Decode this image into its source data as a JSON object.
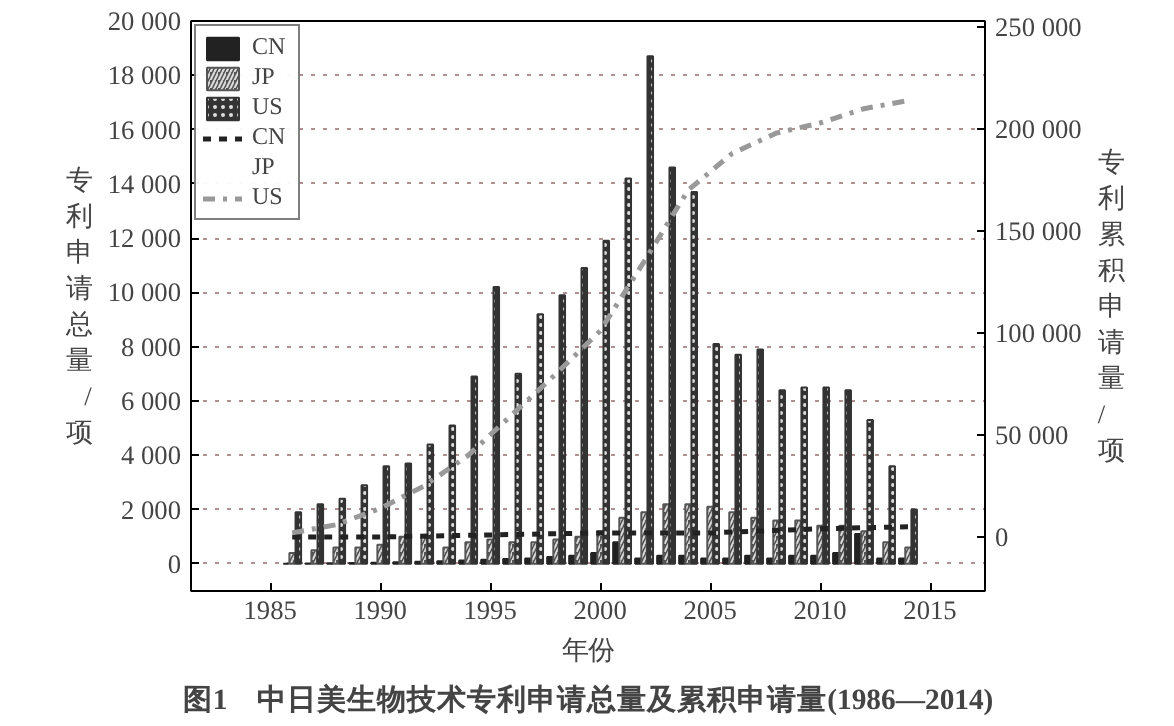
{
  "chart_data": {
    "type": "bar",
    "title": "图1　中日美生物技术专利申请总量及累积申请量(1986—2014)",
    "xlabel": "年份",
    "ylabel": "专利申请总量/项",
    "y2label": "专利累积申请量/项",
    "x": [
      1986,
      1987,
      1988,
      1989,
      1990,
      1991,
      1992,
      1993,
      1994,
      1995,
      1996,
      1997,
      1998,
      1999,
      2000,
      2001,
      2002,
      2003,
      2004,
      2005,
      2006,
      2007,
      2008,
      2009,
      2010,
      2011,
      2012,
      2013,
      2014
    ],
    "series": [
      {
        "name": "CN",
        "color": "#222222",
        "values": [
          0,
          10,
          20,
          30,
          40,
          60,
          80,
          100,
          120,
          150,
          180,
          200,
          250,
          300,
          400,
          800,
          200,
          300,
          300,
          200,
          200,
          300,
          200,
          300,
          300,
          400,
          1100,
          200,
          200
        ]
      },
      {
        "name": "JP",
        "color": "#555555",
        "values": [
          400,
          500,
          600,
          600,
          700,
          1000,
          1000,
          600,
          800,
          900,
          800,
          800,
          900,
          1000,
          1200,
          1700,
          1900,
          2200,
          2200,
          2100,
          1900,
          1700,
          1600,
          1600,
          1400,
          1400,
          1200,
          800,
          600
        ]
      },
      {
        "name": "US",
        "color": "#333333",
        "values": [
          1900,
          2200,
          2400,
          2900,
          3600,
          3700,
          4400,
          5100,
          6900,
          10200,
          7000,
          9200,
          9900,
          10900,
          11900,
          14200,
          18700,
          14600,
          13700,
          8100,
          7700,
          7900,
          6400,
          6500,
          6500,
          6400,
          5300,
          3600,
          2000
        ]
      },
      {
        "name": "CN",
        "type": "line",
        "axis": "y2",
        "color": "#222222",
        "line_style": "dotted",
        "x": [
          1986,
          1990,
          1995,
          2000,
          2005,
          2010,
          2014
        ],
        "values": [
          0,
          0,
          1000,
          2000,
          2000,
          4000,
          5000
        ]
      },
      {
        "name": "US",
        "type": "line",
        "axis": "y2",
        "color": "#999999",
        "line_style": "dashed",
        "x": [
          1986,
          1988,
          1990,
          1992,
          1994,
          1996,
          1998,
          2000,
          2002,
          2004,
          2006,
          2008,
          2010,
          2012,
          2014
        ],
        "values": [
          2000,
          6000,
          14000,
          25000,
          40000,
          60000,
          80000,
          101000,
          135000,
          170000,
          188000,
          198000,
          203000,
          210000,
          214000
        ]
      }
    ],
    "xlim": [
      1981.4,
      2017.5
    ],
    "xticks": [
      1985,
      1990,
      1995,
      2000,
      2005,
      2010,
      2015
    ],
    "ylim": [
      -1000,
      20000
    ],
    "yticks": [
      0,
      {
        "value": 2000,
        "label": "2 000"
      },
      {
        "value": 4000,
        "label": "4 000"
      },
      {
        "value": 6000,
        "label": "6 000"
      },
      {
        "value": 8000,
        "label": "8 000"
      },
      {
        "value": 10000,
        "label": "10 000"
      },
      {
        "value": 12000,
        "label": "12 000"
      },
      {
        "value": 14000,
        "label": "14 000"
      },
      {
        "value": 16000,
        "label": "16 000"
      },
      {
        "value": 18000,
        "label": "18 000"
      },
      {
        "value": 20000,
        "label": "20 000"
      }
    ],
    "y2lim": [
      -26500,
      253000
    ],
    "y2ticks": [
      0,
      {
        "value": 50000,
        "label": "50 000"
      },
      {
        "value": 100000,
        "label": "100 000"
      },
      {
        "value": 150000,
        "label": "150 000"
      },
      {
        "value": 200000,
        "label": "200 000"
      },
      {
        "value": 250000,
        "label": "250 000"
      }
    ],
    "grid": "y",
    "legend": "top left",
    "annotations": [
      "JP"
    ]
  }
}
